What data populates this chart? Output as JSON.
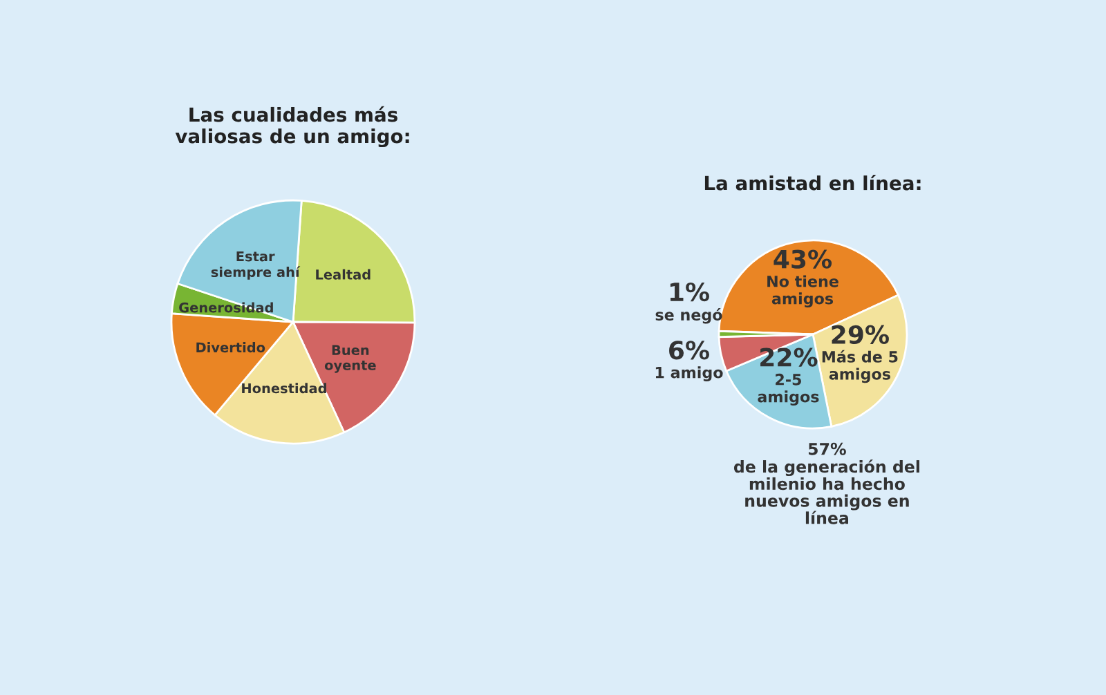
{
  "chart_data": [
    {
      "type": "pie",
      "title": "Las cualidades más\nvaliosas de un amigo:",
      "categories": [
        "Lealtad",
        "Buen\noyente",
        "Honestidad",
        "Divertido",
        "Generosidad",
        "Estar\nsiempre ahí"
      ],
      "values": [
        24,
        18,
        18,
        15,
        4,
        21
      ],
      "colors": [
        "#c9dc6a",
        "#d26563",
        "#f3e39c",
        "#ea8524",
        "#78b533",
        "#8fcfe0"
      ]
    },
    {
      "type": "pie",
      "title": "La amistad en línea:",
      "categories": [
        "No tiene\namigos",
        "Más de 5\namigos",
        "2-5\namigos",
        "1 amigo",
        "se negó"
      ],
      "values": [
        43,
        29,
        22,
        6,
        1
      ],
      "value_labels": [
        "43%",
        "29%",
        "22%",
        "6%",
        "1%"
      ],
      "colors": [
        "#ea8524",
        "#f3e39c",
        "#8fcfe0",
        "#d26563",
        "#78b533"
      ],
      "annotations": [
        "57%\nde la generación del\nmilenio ha hecho\nnuevos amigos en\nlínea"
      ]
    }
  ]
}
